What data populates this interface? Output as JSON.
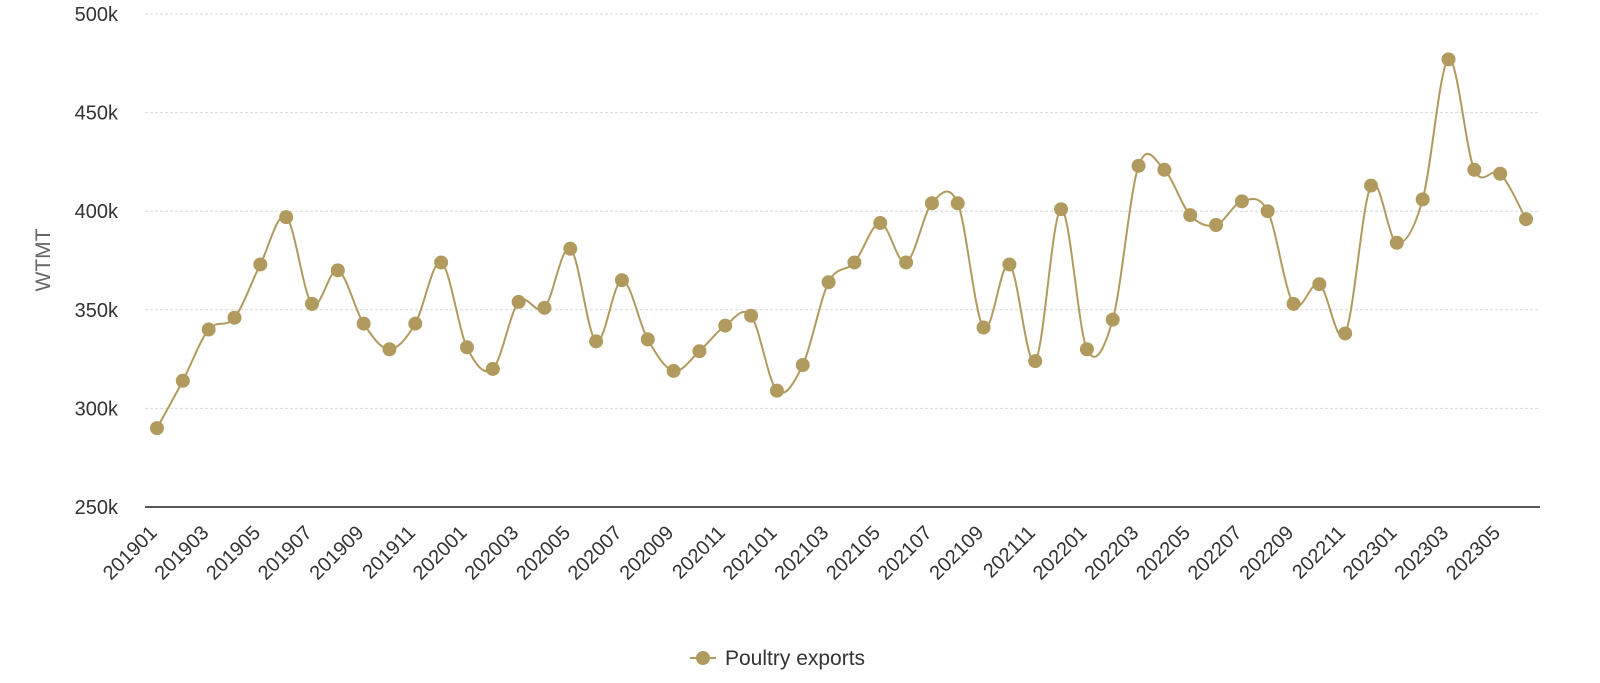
{
  "chart_data": {
    "type": "line",
    "ylabel": "WTMT",
    "ylim": [
      250000,
      500000
    ],
    "y_ticks": [
      {
        "value": 250000,
        "label": "250k"
      },
      {
        "value": 300000,
        "label": "300k"
      },
      {
        "value": 350000,
        "label": "350k"
      },
      {
        "value": 400000,
        "label": "400k"
      },
      {
        "value": 450000,
        "label": "450k"
      },
      {
        "value": 500000,
        "label": "500k"
      }
    ],
    "grid": true,
    "legend_position": "bottom-center",
    "x": [
      "201901",
      "201902",
      "201903",
      "201904",
      "201905",
      "201906",
      "201907",
      "201908",
      "201909",
      "201910",
      "201911",
      "201912",
      "202001",
      "202002",
      "202003",
      "202004",
      "202005",
      "202006",
      "202007",
      "202008",
      "202009",
      "202010",
      "202011",
      "202012",
      "202101",
      "202102",
      "202103",
      "202104",
      "202105",
      "202106",
      "202107",
      "202108",
      "202109",
      "202110",
      "202111",
      "202112",
      "202201",
      "202202",
      "202203",
      "202204",
      "202205",
      "202206",
      "202207",
      "202208",
      "202209",
      "202210",
      "202211",
      "202212",
      "202301",
      "202302",
      "202303",
      "202304",
      "202305",
      "202306"
    ],
    "x_tick_labels": [
      "201901",
      "201903",
      "201905",
      "201907",
      "201909",
      "201911",
      "202001",
      "202003",
      "202005",
      "202007",
      "202009",
      "202011",
      "202101",
      "202103",
      "202105",
      "202107",
      "202109",
      "202111",
      "202201",
      "202203",
      "202205",
      "202207",
      "202209",
      "202211",
      "202301",
      "202303",
      "202305"
    ],
    "series": [
      {
        "name": "Poultry exports",
        "color": "#b09a5e",
        "values": [
          290000,
          314000,
          340000,
          346000,
          373000,
          397000,
          353000,
          370000,
          343000,
          330000,
          343000,
          374000,
          331000,
          320000,
          354000,
          351000,
          381000,
          334000,
          365000,
          335000,
          319000,
          329000,
          342000,
          347000,
          309000,
          322000,
          364000,
          374000,
          394000,
          374000,
          404000,
          404000,
          341000,
          373000,
          324000,
          401000,
          330000,
          345000,
          423000,
          421000,
          398000,
          393000,
          405000,
          400000,
          353000,
          363000,
          338000,
          413000,
          384000,
          406000,
          477000,
          421000,
          419000,
          396000
        ]
      }
    ]
  }
}
